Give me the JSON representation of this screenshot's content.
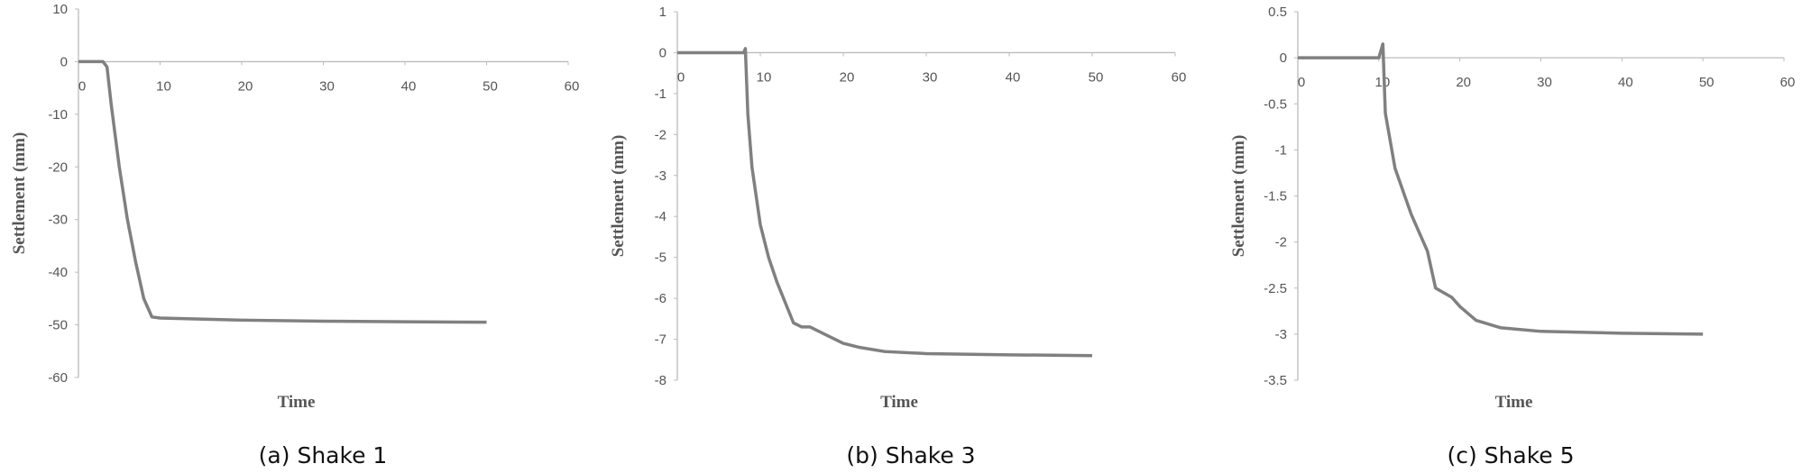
{
  "chart_data": [
    {
      "type": "line",
      "caption": "(a) Shake 1",
      "ylabel": "Settlement (mm)",
      "xlabel": "Time",
      "x": [
        0,
        3,
        3.5,
        4,
        5,
        6,
        7,
        8,
        9,
        10,
        20,
        30,
        40,
        50
      ],
      "series": [
        {
          "name": "Shake 1",
          "color": "#808080",
          "values": [
            0,
            0,
            -1,
            -8,
            -20,
            -30,
            -38,
            -45,
            -48.5,
            -48.7,
            -49.1,
            -49.3,
            -49.4,
            -49.5
          ]
        }
      ],
      "xlim": [
        0,
        60
      ],
      "xticks": [
        0,
        10,
        20,
        30,
        40,
        50,
        60
      ],
      "ylim": [
        -60,
        10
      ],
      "yticks": [
        10,
        0,
        -10,
        -20,
        -30,
        -40,
        -50,
        -60
      ]
    },
    {
      "type": "line",
      "caption": "(b) Shake 3",
      "ylabel": "Settlement (mm)",
      "xlabel": "Time",
      "x": [
        0,
        8,
        8.2,
        8.5,
        9,
        10,
        11,
        12,
        13,
        14,
        15,
        16,
        18,
        20,
        22,
        25,
        30,
        40,
        50
      ],
      "series": [
        {
          "name": "Shake 3",
          "color": "#808080",
          "values": [
            0,
            0,
            0.1,
            -1.5,
            -2.8,
            -4.2,
            -5,
            -5.6,
            -6.1,
            -6.6,
            -6.7,
            -6.7,
            -6.9,
            -7.1,
            -7.2,
            -7.3,
            -7.35,
            -7.38,
            -7.4
          ]
        }
      ],
      "xlim": [
        0,
        60
      ],
      "xticks": [
        0,
        10,
        20,
        30,
        40,
        50,
        60
      ],
      "ylim": [
        -8,
        1
      ],
      "yticks": [
        1,
        0,
        -1,
        -2,
        -3,
        -4,
        -5,
        -6,
        -7,
        -8
      ]
    },
    {
      "type": "line",
      "caption": "(c) Shake 5",
      "ylabel": "Settlement (mm)",
      "xlabel": "Time",
      "x": [
        0,
        10,
        10.5,
        10.8,
        12,
        14,
        16,
        17,
        18,
        19,
        20,
        22,
        25,
        30,
        40,
        50
      ],
      "series": [
        {
          "name": "Shake 5",
          "color": "#808080",
          "values": [
            0,
            0,
            0.15,
            -0.6,
            -1.2,
            -1.7,
            -2.1,
            -2.5,
            -2.55,
            -2.6,
            -2.7,
            -2.85,
            -2.93,
            -2.97,
            -2.99,
            -3.0
          ]
        }
      ],
      "xlim": [
        0,
        60
      ],
      "xticks": [
        0,
        10,
        20,
        30,
        40,
        50,
        60
      ],
      "ylim": [
        -3.5,
        0.5
      ],
      "yticks": [
        0.5,
        0,
        -0.5,
        -1,
        -1.5,
        -2,
        -2.5,
        -3,
        -3.5
      ]
    }
  ]
}
